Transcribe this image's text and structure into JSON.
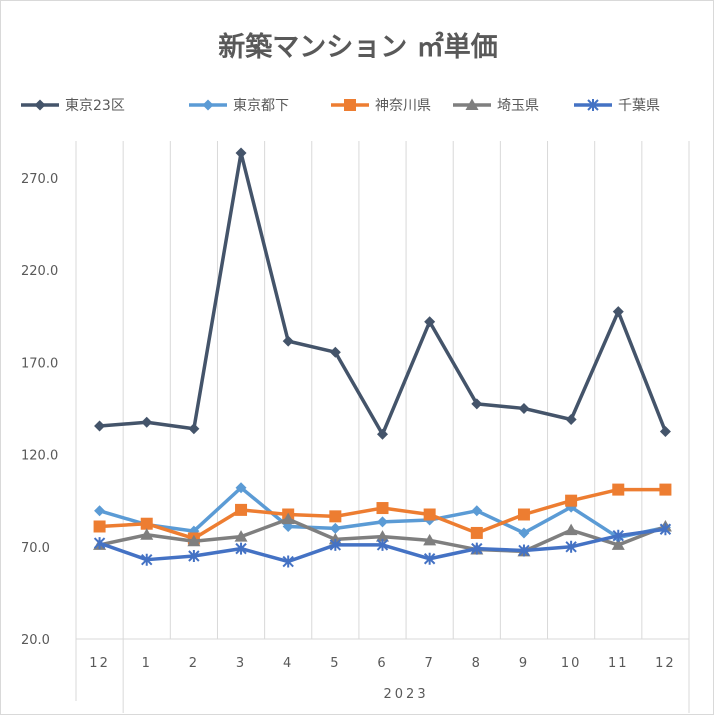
{
  "chart_data": {
    "type": "line",
    "title": "新築マンション ㎡単価",
    "categories": [
      "12",
      "1",
      "2",
      "3",
      "4",
      "5",
      "6",
      "7",
      "8",
      "9",
      "10",
      "11",
      "12"
    ],
    "year_label": "2023",
    "yticks": [
      "20.0",
      "70.0",
      "120.0",
      "170.0",
      "220.0",
      "270.0"
    ],
    "ylim": [
      20,
      290
    ],
    "grid": "vertical",
    "legend_position": "top",
    "series": [
      {
        "name": "東京23区",
        "color": "#44546a",
        "marker": "diamond",
        "values": [
          135.5,
          137.5,
          134,
          283.5,
          181.5,
          175.5,
          131,
          192,
          147.5,
          145,
          139,
          197.5,
          132.5
        ]
      },
      {
        "name": "東京都下",
        "color": "#5b9bd5",
        "marker": "diamond",
        "values": [
          89.5,
          82,
          78.5,
          102,
          81,
          80,
          83.5,
          84.5,
          89.5,
          77.5,
          91.5,
          75,
          80.5
        ]
      },
      {
        "name": "神奈川県",
        "color": "#ed7d31",
        "marker": "square",
        "values": [
          81,
          82.5,
          74.5,
          90,
          87.5,
          86.5,
          91,
          87.5,
          77.5,
          87.5,
          95,
          101,
          101
        ]
      },
      {
        "name": "埼玉県",
        "color": "#7f7f7f",
        "marker": "triangle",
        "values": [
          71,
          76.5,
          73,
          75.5,
          85,
          74,
          75.5,
          73.5,
          68.5,
          67.5,
          79,
          71,
          81
        ]
      },
      {
        "name": "千葉県",
        "color": "#4472c4",
        "marker": "star",
        "values": [
          72,
          63,
          65,
          69,
          62,
          71,
          71,
          63.5,
          69,
          68,
          70,
          76,
          79.5
        ]
      }
    ]
  }
}
